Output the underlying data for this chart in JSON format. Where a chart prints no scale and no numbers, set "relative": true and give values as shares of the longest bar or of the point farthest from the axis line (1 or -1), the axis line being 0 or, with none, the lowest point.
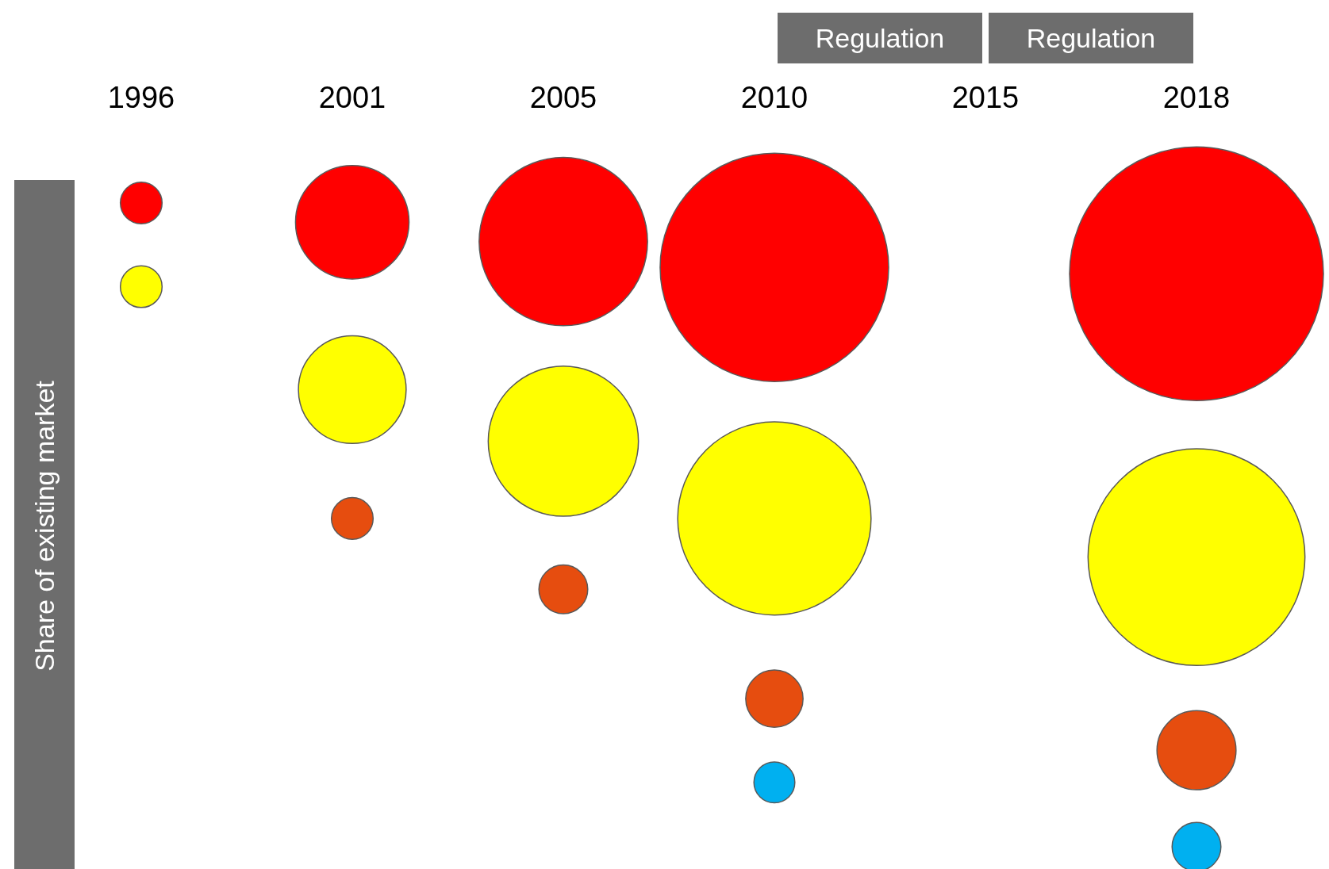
{
  "chart_data": {
    "type": "bubble",
    "ylabel": "Share of existing market",
    "categories": [
      "1996",
      "2001",
      "2005",
      "2010",
      "2015",
      "2018"
    ],
    "relative": true,
    "series": [
      {
        "color": "#ff0000",
        "values": [
          1.0,
          0.97,
          0.94,
          0.9,
          null,
          0.89
        ],
        "sizes": [
          0.027,
          0.2,
          0.44,
          0.81,
          null,
          1
        ]
      },
      {
        "color": "#ffff00",
        "values": [
          0.87,
          0.71,
          0.63,
          0.51,
          null,
          0.45
        ],
        "sizes": [
          0.027,
          0.18,
          0.35,
          0.58,
          null,
          0.73
        ]
      },
      {
        "color": "#e64d0f",
        "values": [
          null,
          0.51,
          0.4,
          0.23,
          null,
          0.15
        ],
        "sizes": [
          null,
          0.027,
          0.037,
          0.051,
          null,
          0.097
        ]
      },
      {
        "color": "#00b0f0",
        "values": [
          null,
          null,
          null,
          0.1,
          null,
          0
        ],
        "sizes": [
          null,
          null,
          null,
          0.026,
          null,
          0.037
        ]
      }
    ],
    "annotations": [
      "Regulation",
      "Regulation"
    ]
  }
}
